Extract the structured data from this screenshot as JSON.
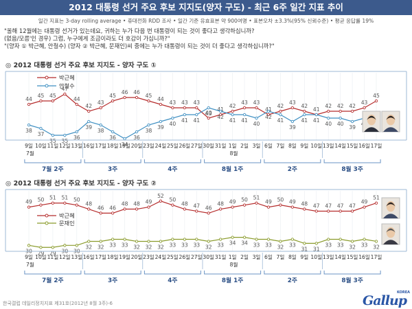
{
  "header": {
    "title": "2012 대통령 선거 주요 후보 지지도(양자 구도) - 최근 6주 일간 지표 추이",
    "subtitle": "일간 지표는 3-day rolling average  •  휴대전화 RDD 조사  •  일간 기준 유효표본 약 900여명  •  표본오차 ±3.3%(95% 신뢰수준)  •  평균 응답률 19%"
  },
  "question": {
    "line1": "\"올해 12월에는 대통령 선거가 있는데요, 귀하는 누가 다음 번 대통령이 되는 것이 좋다고 생각하십니까?",
    "line2": "(없음/모름'인 경우) 그럼, 누구에게 조금이라도 더 호감이 가십니까?\"",
    "line3": "\"(양자 ① 박근혜, 안철수) (양자 ② 박근혜, 문재인)씨 중에는 누가 대통령이 되는 것이 더 좋다고 생각하십니까?\""
  },
  "x_axis": {
    "dates": [
      "9일",
      "10일",
      "11일",
      "12일",
      "13일",
      "16일",
      "17일",
      "18일",
      "19일",
      "20일",
      "23일",
      "24일",
      "25일",
      "26일",
      "27일",
      "30일",
      "31일",
      "1일",
      "2일",
      "3일",
      "6일",
      "7일",
      "8일",
      "9일",
      "10일",
      "13일",
      "14일",
      "15일",
      "16일",
      "17일"
    ],
    "month_labels": [
      {
        "text": "7월",
        "index": 0
      },
      {
        "text": "8월",
        "index": 17
      }
    ],
    "weeks": [
      "7월 2주",
      "3주",
      "4주",
      "8월 1주",
      "2주",
      "8월 3주"
    ]
  },
  "chart_data": [
    {
      "type": "line",
      "title": "2012 대통령 선거 주요 후보 지지도 - 양자 구도 ①",
      "x": [
        "7월 9일",
        "7월 10일",
        "7월 11일",
        "7월 12일",
        "7월 13일",
        "7월 16일",
        "7월 17일",
        "7월 18일",
        "7월 19일",
        "7월 20일",
        "7월 23일",
        "7월 24일",
        "7월 25일",
        "7월 26일",
        "7월 27일",
        "7월 30일",
        "7월 31일",
        "8월 1일",
        "8월 2일",
        "8월 3일",
        "8월 6일",
        "8월 7일",
        "8월 8일",
        "8월 9일",
        "8월 10일",
        "8월 13일",
        "8월 14일",
        "8월 15일",
        "8월 16일",
        "8월 17일"
      ],
      "ylim": [
        30,
        50
      ],
      "series": [
        {
          "name": "박근혜",
          "color": "#b52b2b",
          "values": [
            44,
            45,
            45,
            47,
            44,
            42,
            43,
            45,
            46,
            46,
            45,
            44,
            43,
            43,
            43,
            40,
            41,
            42,
            43,
            43,
            41,
            42,
            43,
            42,
            41,
            42,
            42,
            42,
            43,
            45
          ]
        },
        {
          "name": "안철수",
          "color": "#3e8fc2",
          "values": [
            38,
            37,
            35,
            35,
            36,
            39,
            38,
            36,
            34,
            36,
            38,
            39,
            40,
            41,
            41,
            43,
            42,
            41,
            41,
            40,
            42,
            41,
            39,
            41,
            41,
            40,
            40,
            39,
            40,
            39
          ]
        }
      ],
      "legend": "top-left"
    },
    {
      "type": "line",
      "title": "2012 대통령 선거 주요 후보 지지도 - 양자 구도 ②",
      "x": [
        "7월 9일",
        "7월 10일",
        "7월 11일",
        "7월 12일",
        "7월 13일",
        "7월 16일",
        "7월 17일",
        "7월 18일",
        "7월 19일",
        "7월 20일",
        "7월 23일",
        "7월 24일",
        "7월 25일",
        "7월 26일",
        "7월 27일",
        "7월 30일",
        "7월 31일",
        "8월 1일",
        "8월 2일",
        "8월 3일",
        "8월 6일",
        "8월 7일",
        "8월 8일",
        "8월 9일",
        "8월 10일",
        "8월 13일",
        "8월 14일",
        "8월 15일",
        "8월 16일",
        "8월 17일"
      ],
      "ylim": [
        25,
        55
      ],
      "series": [
        {
          "name": "박근혜",
          "color": "#b52b2b",
          "values": [
            49,
            50,
            51,
            51,
            50,
            48,
            46,
            46,
            48,
            48,
            49,
            52,
            50,
            48,
            47,
            46,
            48,
            49,
            50,
            51,
            49,
            50,
            49,
            48,
            47,
            47,
            47,
            47,
            49,
            51
          ]
        },
        {
          "name": "문재인",
          "color": "#8a9b2b",
          "values": [
            30,
            29,
            29,
            30,
            30,
            32,
            32,
            33,
            33,
            32,
            32,
            32,
            33,
            33,
            33,
            32,
            33,
            34,
            34,
            33,
            33,
            32,
            33,
            31,
            31,
            33,
            33,
            32,
            33,
            32
          ]
        }
      ],
      "legend": "middle-left"
    }
  ],
  "footer": {
    "note": "한국갤럽 데일리정치지표 제31호(2012년 8월 3주)-6",
    "logo_text": "Gallup",
    "logo_small": "KOREA"
  }
}
